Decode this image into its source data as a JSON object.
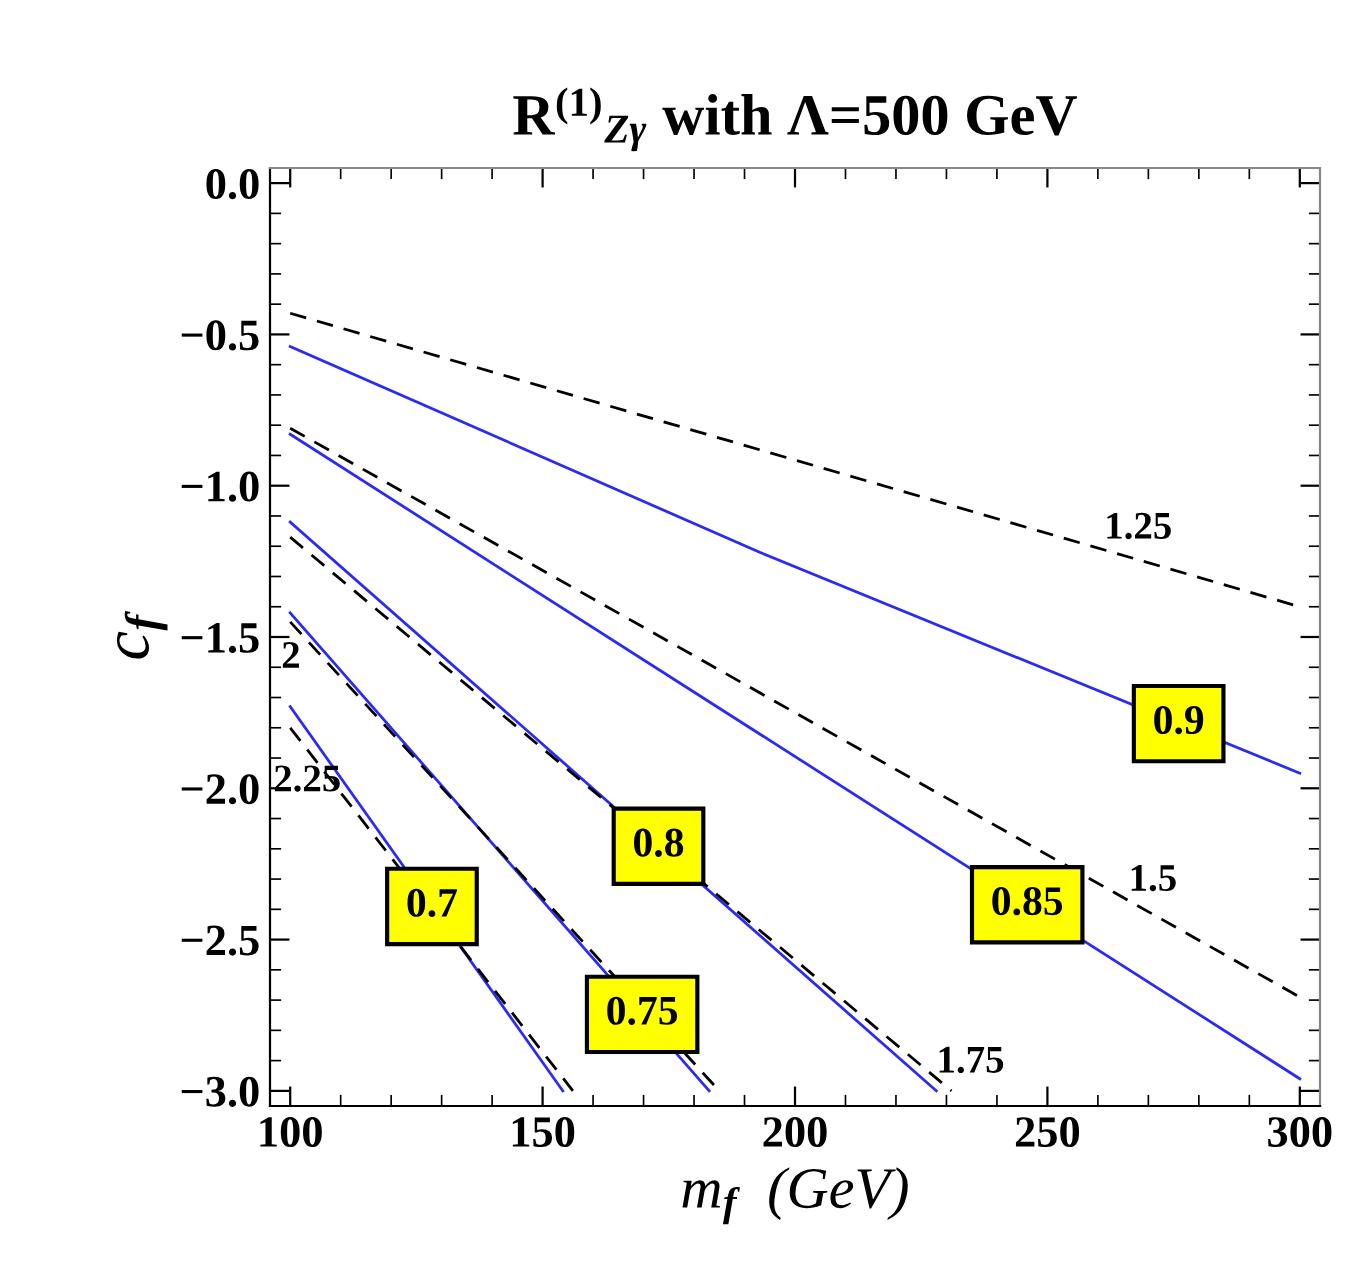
{
  "chart_data": {
    "type": "line",
    "title": "R$^{(1)}$$_{Zγ}$ with Λ=500 GeV",
    "xlabel": "m$_{f}$  (GeV)",
    "ylabel": "c$_{f}$",
    "xlim": [
      96,
      304
    ],
    "ylim": [
      -3.05,
      0.05
    ],
    "xticks": [
      100,
      150,
      200,
      250,
      300
    ],
    "yticks": [
      {
        "value": 0,
        "label": "0.0"
      },
      {
        "value": -0.5,
        "label": "−0.5"
      },
      {
        "value": -1,
        "label": "−1.0"
      },
      {
        "value": -1.5,
        "label": "−1.5"
      },
      {
        "value": -2,
        "label": "−2.0"
      },
      {
        "value": -2.5,
        "label": "−2.5"
      },
      {
        "value": -3,
        "label": "−3.0"
      }
    ],
    "grid": false,
    "marker": "none",
    "series": [
      {
        "name": "0.9",
        "color": "#2b2bf5",
        "line_style": "solid",
        "x": [
          100,
          193,
          300
        ],
        "values": [
          -0.54,
          -1.22,
          -1.95
        ]
      },
      {
        "name": "0.85",
        "color": "#2b2bf5",
        "line_style": "solid",
        "x": [
          100,
          300
        ],
        "values": [
          -0.83,
          -2.96
        ]
      },
      {
        "name": "0.8",
        "color": "#2b2bf5",
        "line_style": "solid",
        "x": [
          100,
          228
        ],
        "values": [
          -1.12,
          -3
        ]
      },
      {
        "name": "0.75",
        "color": "#2b2bf5",
        "line_style": "solid",
        "x": [
          100,
          183
        ],
        "values": [
          -1.42,
          -3
        ]
      },
      {
        "name": "0.7",
        "color": "#2b2bf5",
        "line_style": "solid",
        "x": [
          100,
          154
        ],
        "values": [
          -1.73,
          -3
        ]
      },
      {
        "name": "1.25",
        "color": "#000000",
        "line_style": "dashed",
        "x": [
          100,
          300
        ],
        "values": [
          -0.43,
          -1.4
        ]
      },
      {
        "name": "1.5",
        "color": "#000000",
        "line_style": "dashed",
        "x": [
          100,
          300
        ],
        "values": [
          -0.81,
          -2.69
        ]
      },
      {
        "name": "1.75",
        "color": "#000000",
        "line_style": "dashed",
        "x": [
          100,
          231
        ],
        "values": [
          -1.17,
          -3
        ]
      },
      {
        "name": "2",
        "color": "#000000",
        "line_style": "dashed",
        "x": [
          100,
          185
        ],
        "values": [
          -1.45,
          -3
        ]
      },
      {
        "name": "2.25",
        "color": "#000000",
        "line_style": "dashed",
        "x": [
          100,
          156
        ],
        "values": [
          -1.8,
          -3
        ]
      }
    ]
  }
}
